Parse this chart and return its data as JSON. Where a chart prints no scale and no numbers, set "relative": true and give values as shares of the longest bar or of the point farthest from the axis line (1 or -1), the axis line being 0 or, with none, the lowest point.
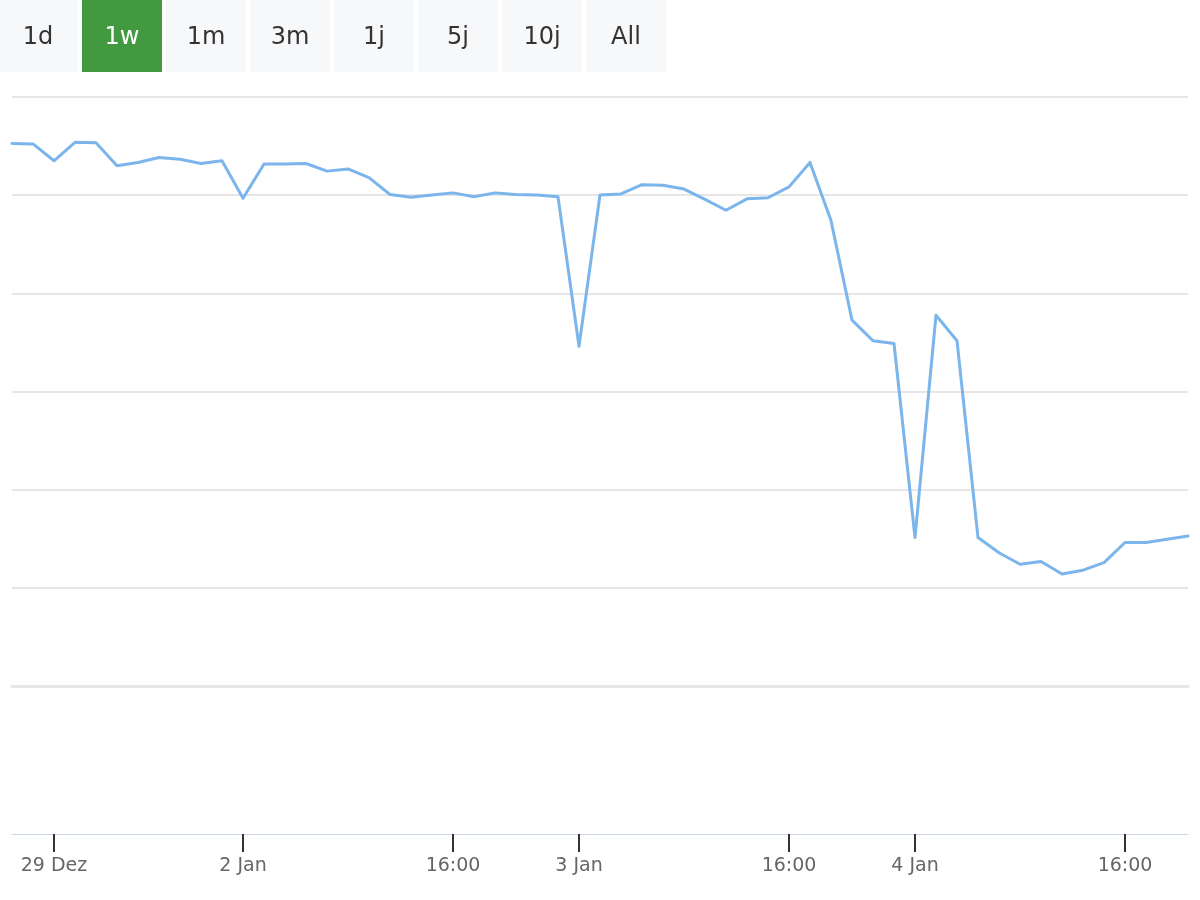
{
  "chart_data": {
    "type": "line",
    "relative": true,
    "grid": "y",
    "marker": "none",
    "color": "#7cb5ec",
    "categories": [
      null,
      null,
      "29 Dez",
      null,
      null,
      null,
      null,
      null,
      null,
      null,
      null,
      "2 Jan",
      null,
      null,
      null,
      null,
      null,
      null,
      null,
      null,
      null,
      "16:00",
      null,
      null,
      null,
      null,
      null,
      "3 Jan",
      null,
      null,
      null,
      null,
      null,
      null,
      null,
      null,
      null,
      "16:00",
      null,
      null,
      null,
      null,
      null,
      "4 Jan",
      null,
      null,
      null,
      null,
      null,
      null,
      null,
      null,
      null,
      "16:00",
      null,
      null,
      null
    ],
    "values": [
      0.998,
      0.997,
      0.966,
      1.0,
      0.999,
      0.957,
      0.963,
      0.972,
      0.969,
      0.961,
      0.966,
      0.897,
      0.96,
      0.96,
      0.961,
      0.947,
      0.951,
      0.935,
      0.904,
      0.899,
      0.903,
      0.907,
      0.9,
      0.907,
      0.904,
      0.903,
      0.9,
      0.625,
      0.903,
      0.905,
      0.922,
      0.921,
      0.914,
      0.895,
      0.875,
      0.896,
      0.898,
      0.918,
      0.963,
      0.856,
      0.673,
      0.635,
      0.63,
      0.273,
      0.682,
      0.635,
      0.273,
      0.245,
      0.224,
      0.229,
      0.206,
      0.213,
      0.227,
      0.264,
      0.264,
      0.27,
      0.276
    ],
    "annotations": [
      "1d",
      "1w",
      "1m",
      "3m",
      "1j",
      "5j",
      "10j",
      "All"
    ]
  }
}
